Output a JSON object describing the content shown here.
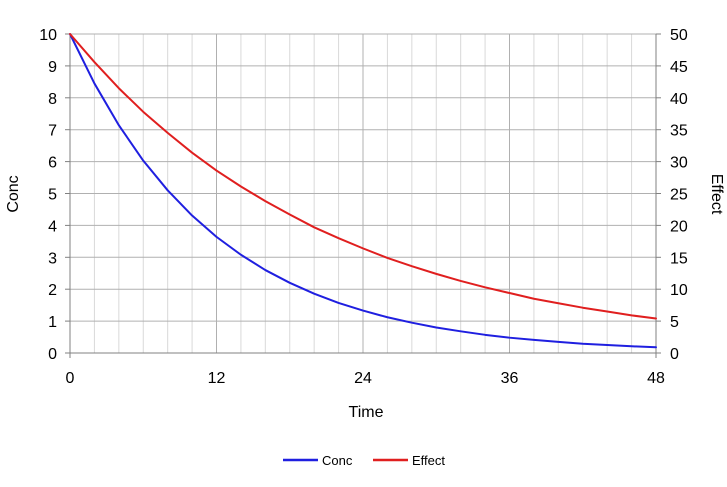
{
  "chart_data": {
    "type": "line",
    "title": "",
    "xlabel": "Time",
    "ylabel": "Conc",
    "y2label": "Effect",
    "xlim": [
      0,
      48
    ],
    "ylim": [
      0,
      10
    ],
    "y2lim": [
      0,
      50
    ],
    "x_major_ticks": [
      "0",
      "12",
      "24",
      "36",
      "48"
    ],
    "y_ticks": [
      "0",
      "1",
      "2",
      "3",
      "4",
      "5",
      "6",
      "7",
      "8",
      "9",
      "10"
    ],
    "y2_ticks": [
      "0",
      "5",
      "10",
      "15",
      "20",
      "25",
      "30",
      "35",
      "40",
      "45",
      "50"
    ],
    "grid": true,
    "legend_position": "bottom",
    "x": [
      0,
      2,
      4,
      6,
      8,
      10,
      12,
      14,
      16,
      18,
      20,
      22,
      24,
      26,
      28,
      30,
      32,
      34,
      36,
      38,
      40,
      42,
      44,
      46,
      48
    ],
    "series": [
      {
        "name": "Conc",
        "axis": "left",
        "color": "#1f1fe0",
        "values": [
          10.0,
          8.45,
          7.14,
          6.03,
          5.1,
          4.31,
          3.64,
          3.08,
          2.6,
          2.2,
          1.86,
          1.57,
          1.33,
          1.12,
          0.95,
          0.8,
          0.68,
          0.57,
          0.48,
          0.41,
          0.35,
          0.29,
          0.25,
          0.21,
          0.18
        ]
      },
      {
        "name": "Effect",
        "axis": "right",
        "color": "#e01f1f",
        "values": [
          50.0,
          45.6,
          41.5,
          37.8,
          34.5,
          31.4,
          28.6,
          26.1,
          23.8,
          21.7,
          19.7,
          18.0,
          16.4,
          14.9,
          13.6,
          12.4,
          11.3,
          10.3,
          9.4,
          8.5,
          7.8,
          7.1,
          6.5,
          5.9,
          5.4
        ]
      }
    ]
  }
}
